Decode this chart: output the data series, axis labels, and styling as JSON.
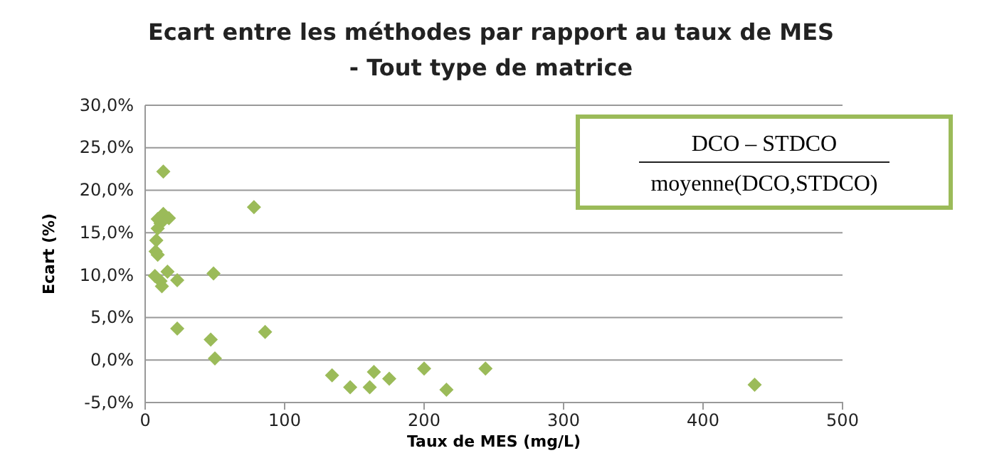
{
  "chart_data": {
    "type": "scatter",
    "title": "Ecart entre les méthodes par rapport au taux de MES",
    "subtitle": "- Tout type de matrice",
    "xlabel": "Taux de MES (mg/L)",
    "ylabel": "Ecart (%)",
    "annotations": [
      "DCO – STDCO",
      "moyenne(DCO,STDCO)"
    ],
    "x": [
      13,
      78,
      9,
      13,
      17,
      11,
      9,
      8,
      7.5,
      9,
      7,
      11,
      12,
      16,
      23,
      49,
      23,
      47,
      50,
      86,
      134,
      147,
      161,
      164,
      175,
      200,
      216,
      244,
      437
    ],
    "series": [
      {
        "color": "#9bbb59",
        "values": [
          22.2,
          18,
          16.6,
          17.2,
          16.7,
          16.1,
          15.5,
          14.1,
          12.8,
          12.4,
          9.9,
          9.3,
          8.7,
          10.4,
          9.4,
          10.2,
          3.7,
          2.4,
          0.2,
          3.3,
          -1.8,
          -3.2,
          -3.2,
          -1.4,
          -2.2,
          -1,
          -3.5,
          -1,
          -2.9
        ]
      }
    ],
    "xlim": [
      0,
      500
    ],
    "xticks": [
      0,
      100,
      200,
      300,
      400,
      500
    ],
    "ylim": [
      -5,
      30
    ],
    "yticks": [
      {
        "value": -5,
        "label": "-5,0%"
      },
      {
        "value": 0,
        "label": "0,0%"
      },
      {
        "value": 5,
        "label": "5,0%"
      },
      {
        "value": 10,
        "label": "10,0%"
      },
      {
        "value": 15,
        "label": "15,0%"
      },
      {
        "value": 20,
        "label": "20,0%"
      },
      {
        "value": 25,
        "label": "25,0%"
      },
      {
        "value": 30,
        "label": "30,0%"
      }
    ],
    "grid": "y",
    "marker": "diamond"
  }
}
